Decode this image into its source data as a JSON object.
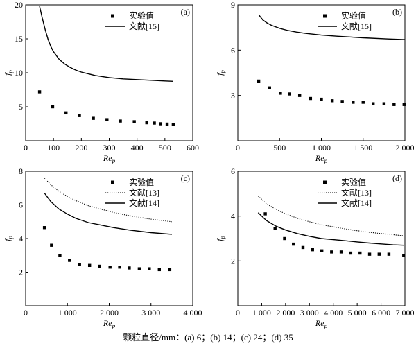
{
  "caption": "颗粒直径/mm：(a) 6；(b) 14；(c) 24；(d) 35",
  "chart_data": [
    {
      "type": "scatter",
      "panel": "(a)",
      "xlabel": "Re",
      "xlabel_sub": "p",
      "ylabel": "f",
      "ylabel_sub": "p",
      "xlim": [
        0,
        600
      ],
      "ylim": [
        0,
        20
      ],
      "xticks": [
        0,
        100,
        200,
        300,
        400,
        500,
        600
      ],
      "xtick_labels": [
        "0",
        "100",
        "200",
        "300",
        "400",
        "500",
        "600"
      ],
      "yticks": [
        5,
        10,
        15,
        20
      ],
      "ytick_labels": [
        "5",
        "10",
        "15",
        "20"
      ],
      "legend_position": "top-right",
      "series": [
        {
          "name": "实验值",
          "style": "markers",
          "x": [
            50,
            97,
            145,
            193,
            243,
            292,
            340,
            390,
            435,
            462,
            485,
            508,
            530
          ],
          "y": [
            7.2,
            5.0,
            4.1,
            3.7,
            3.3,
            3.1,
            2.9,
            2.8,
            2.65,
            2.6,
            2.5,
            2.45,
            2.4
          ]
        },
        {
          "name": "文献[15]",
          "style": "solid",
          "x": [
            50,
            60,
            70,
            80,
            90,
            100,
            120,
            140,
            160,
            180,
            200,
            250,
            300,
            350,
            400,
            450,
            500,
            530
          ],
          "y": [
            19.8,
            18.0,
            16.4,
            15.0,
            13.9,
            13.1,
            12.0,
            11.3,
            10.8,
            10.4,
            10.1,
            9.6,
            9.3,
            9.1,
            9.0,
            8.9,
            8.8,
            8.75
          ]
        }
      ]
    },
    {
      "type": "scatter",
      "panel": "(b)",
      "xlabel": "Re",
      "xlabel_sub": "p",
      "ylabel": "f",
      "ylabel_sub": "p",
      "xlim": [
        0,
        2000
      ],
      "ylim": [
        0,
        9
      ],
      "xticks": [
        500,
        1000,
        1500,
        2000
      ],
      "xtick_labels": [
        "500",
        "1 000",
        "1 500",
        "2 000"
      ],
      "yticks": [
        3,
        6,
        9
      ],
      "ytick_labels": [
        "3",
        "6",
        "9"
      ],
      "legend_position": "top-right",
      "series": [
        {
          "name": "实验值",
          "style": "markers",
          "x": [
            250,
            380,
            510,
            620,
            740,
            870,
            1000,
            1130,
            1250,
            1380,
            1500,
            1620,
            1750,
            1870,
            1990
          ],
          "y": [
            3.95,
            3.5,
            3.15,
            3.1,
            3.0,
            2.8,
            2.75,
            2.65,
            2.6,
            2.55,
            2.55,
            2.45,
            2.45,
            2.4,
            2.4
          ]
        },
        {
          "name": "文献[15]",
          "style": "solid",
          "x": [
            250,
            300,
            350,
            400,
            500,
            600,
            700,
            800,
            1000,
            1200,
            1500,
            1800,
            2000
          ],
          "y": [
            8.35,
            8.0,
            7.8,
            7.65,
            7.45,
            7.3,
            7.2,
            7.12,
            7.0,
            6.92,
            6.82,
            6.74,
            6.7
          ]
        }
      ]
    },
    {
      "type": "scatter",
      "panel": "(c)",
      "xlabel": "Re",
      "xlabel_sub": "p",
      "ylabel": "f",
      "ylabel_sub": "p",
      "xlim": [
        0,
        4000
      ],
      "ylim": [
        0,
        8
      ],
      "xticks": [
        1000,
        2000,
        3000,
        4000
      ],
      "xtick_labels": [
        "1 000",
        "2 000",
        "3 000",
        "4 000"
      ],
      "yticks": [
        2,
        4,
        6,
        8
      ],
      "ytick_labels": [
        "2",
        "4",
        "6",
        "8"
      ],
      "legend_position": "top-right",
      "series": [
        {
          "name": "实验值",
          "style": "markers",
          "x": [
            450,
            620,
            820,
            1050,
            1290,
            1530,
            1770,
            2020,
            2250,
            2480,
            2720,
            2960,
            3200,
            3450
          ],
          "y": [
            4.65,
            3.6,
            3.0,
            2.7,
            2.45,
            2.4,
            2.35,
            2.3,
            2.3,
            2.25,
            2.2,
            2.2,
            2.15,
            2.15
          ]
        },
        {
          "name": "文献[13]",
          "style": "dotted",
          "x": [
            450,
            600,
            800,
            1000,
            1200,
            1500,
            1800,
            2100,
            2500,
            3000,
            3500
          ],
          "y": [
            7.6,
            7.2,
            6.8,
            6.5,
            6.25,
            5.95,
            5.75,
            5.55,
            5.35,
            5.15,
            5.0
          ]
        },
        {
          "name": "文献[14]",
          "style": "solid",
          "x": [
            450,
            600,
            800,
            1000,
            1200,
            1500,
            1800,
            2100,
            2500,
            3000,
            3500
          ],
          "y": [
            6.7,
            6.2,
            5.75,
            5.45,
            5.2,
            4.95,
            4.8,
            4.65,
            4.5,
            4.35,
            4.25
          ]
        }
      ]
    },
    {
      "type": "scatter",
      "panel": "(d)",
      "xlabel": "Re",
      "xlabel_sub": "p",
      "ylabel": "f",
      "ylabel_sub": "p",
      "xlim": [
        0,
        7000
      ],
      "ylim": [
        0,
        6
      ],
      "xticks": [
        1000,
        2000,
        3000,
        4000,
        5000,
        6000,
        7000
      ],
      "xtick_labels": [
        "1 000",
        "2 000",
        "3 000",
        "4 000",
        "5 000",
        "6 000",
        "7 000"
      ],
      "yticks": [
        2,
        4,
        6
      ],
      "ytick_labels": [
        "2",
        "4",
        "6"
      ],
      "legend_position": "top-right",
      "series": [
        {
          "name": "实验值",
          "style": "markers",
          "x": [
            1150,
            1560,
            1960,
            2330,
            2730,
            3130,
            3520,
            3930,
            4330,
            4730,
            5120,
            5520,
            5920,
            6330,
            6950
          ],
          "y": [
            4.1,
            3.45,
            3.0,
            2.75,
            2.6,
            2.5,
            2.45,
            2.4,
            2.4,
            2.35,
            2.35,
            2.3,
            2.3,
            2.3,
            2.25
          ]
        },
        {
          "name": "文献[13]",
          "style": "dotted",
          "x": [
            850,
            1200,
            1600,
            2000,
            2500,
            3000,
            3500,
            4000,
            4500,
            5000,
            5500,
            6000,
            6500,
            6950
          ],
          "y": [
            4.9,
            4.55,
            4.3,
            4.1,
            3.9,
            3.75,
            3.62,
            3.52,
            3.43,
            3.35,
            3.28,
            3.22,
            3.17,
            3.12
          ]
        },
        {
          "name": "文献[14]",
          "style": "solid",
          "x": [
            850,
            1200,
            1600,
            2000,
            2500,
            3000,
            3500,
            4000,
            4500,
            5000,
            5500,
            6000,
            6500,
            6950
          ],
          "y": [
            4.15,
            3.8,
            3.55,
            3.38,
            3.22,
            3.1,
            3.0,
            2.95,
            2.9,
            2.85,
            2.8,
            2.76,
            2.72,
            2.7
          ]
        }
      ]
    }
  ]
}
